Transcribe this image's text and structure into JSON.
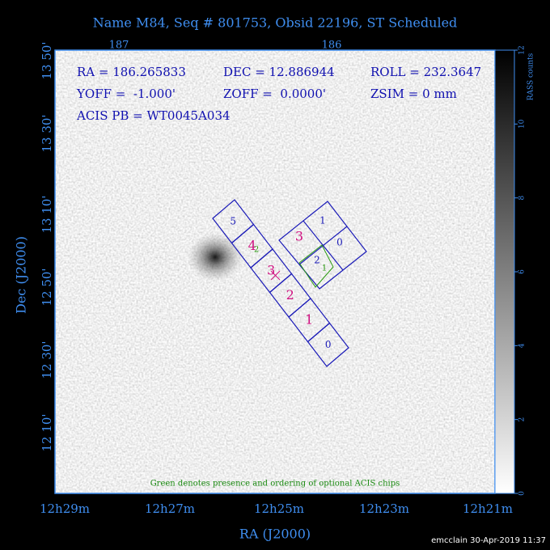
{
  "title": "Name M84, Seq # 801753, Obsid 22196, ST Scheduled",
  "top_axis": {
    "labels": [
      "187",
      "186"
    ]
  },
  "left_axis": {
    "title": "Dec (J2000)",
    "labels": [
      "13 50'",
      "13 30'",
      "13 10'",
      "12 50'",
      "12 30'",
      "12 10'"
    ]
  },
  "bottom_axis": {
    "title": "RA (J2000)",
    "labels": [
      "12h29m",
      "12h27m",
      "12h25m",
      "12h23m",
      "12h21m"
    ]
  },
  "info": {
    "ra": "RA = 186.265833",
    "dec": "DEC = 12.886944",
    "roll": "ROLL = 232.3647",
    "yoff": "YOFF =  -1.000'",
    "zoff": "ZOFF =  0.0000'",
    "zsim": "ZSIM = 0 mm",
    "acis_pb": "ACIS PB = WT0045A034"
  },
  "chips": {
    "acis_s": [
      "5",
      "4",
      "3",
      "2",
      "1",
      "0"
    ],
    "acis_i": [
      "3",
      "1",
      "0",
      "2"
    ],
    "optional": [
      "2",
      "1"
    ]
  },
  "note": "Green denotes presence and ordering of optional ACIS chips",
  "colorbar": {
    "label": "RASS counts",
    "lim": [
      0,
      12
    ],
    "ticks": [
      0,
      2,
      4,
      6,
      8,
      10,
      12
    ]
  },
  "footer": "emcclain 30-Apr-2019 11:37"
}
